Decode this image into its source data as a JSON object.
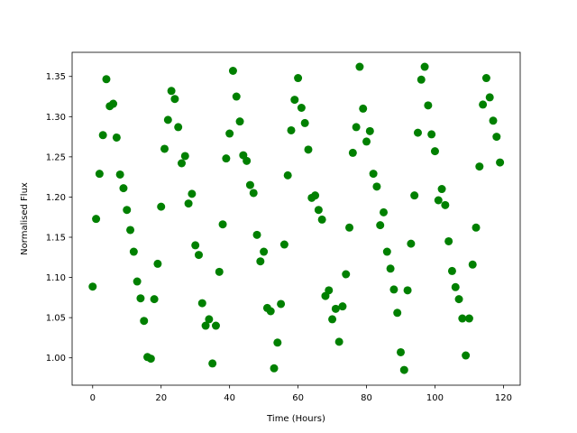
{
  "chart_data": {
    "type": "scatter",
    "xlabel": "Time (Hours)",
    "ylabel": "Normalised Flux",
    "color": "#008000",
    "x": [
      0,
      1,
      2,
      3,
      4,
      5,
      6,
      7,
      8,
      9,
      10,
      11,
      12,
      13,
      14,
      15,
      16,
      17,
      18,
      19,
      20,
      21,
      22,
      23,
      24,
      25,
      26,
      27,
      28,
      29,
      30,
      31,
      32,
      33,
      34,
      35,
      36,
      37,
      38,
      39,
      40,
      41,
      42,
      43,
      44,
      45,
      46,
      47,
      48,
      49,
      50,
      51,
      52,
      53,
      54,
      55,
      56,
      57,
      58,
      59,
      60,
      61,
      62,
      63,
      64,
      65,
      66,
      67,
      68,
      69,
      70,
      71,
      72,
      73,
      74,
      75,
      76,
      77,
      78,
      79,
      80,
      81,
      82,
      83,
      84,
      85,
      86,
      87,
      88,
      89,
      90,
      91,
      92,
      93,
      94,
      95,
      96,
      97,
      98,
      99,
      100,
      101,
      102,
      103,
      104,
      105,
      106,
      107,
      108,
      109,
      110,
      111,
      112,
      113,
      114,
      115,
      116,
      117,
      118,
      119
    ],
    "values": [
      1.0886,
      1.1728,
      1.2289,
      1.277,
      1.3466,
      1.313,
      1.316,
      1.274,
      1.228,
      1.211,
      1.184,
      1.159,
      1.132,
      1.095,
      1.074,
      1.046,
      1.001,
      0.999,
      1.073,
      1.117,
      1.188,
      1.26,
      1.296,
      1.332,
      1.322,
      1.287,
      1.242,
      1.251,
      1.192,
      1.204,
      1.14,
      1.128,
      1.068,
      1.04,
      1.048,
      0.993,
      1.04,
      1.107,
      1.166,
      1.248,
      1.279,
      1.357,
      1.325,
      1.294,
      1.252,
      1.245,
      1.215,
      1.205,
      1.153,
      1.12,
      1.132,
      1.062,
      1.058,
      0.987,
      1.019,
      1.067,
      1.141,
      1.227,
      1.283,
      1.321,
      1.348,
      1.311,
      1.292,
      1.259,
      1.199,
      1.202,
      1.184,
      1.172,
      1.077,
      1.084,
      1.048,
      1.061,
      1.02,
      1.064,
      1.104,
      1.162,
      1.255,
      1.287,
      1.362,
      1.31,
      1.269,
      1.282,
      1.229,
      1.213,
      1.165,
      1.181,
      1.132,
      1.111,
      1.085,
      1.056,
      1.007,
      0.985,
      1.084,
      1.142,
      1.202,
      1.28,
      1.346,
      1.362,
      1.314,
      1.278,
      1.257,
      1.196,
      1.21,
      1.19,
      1.145,
      1.108,
      1.088,
      1.073,
      1.049,
      1.003,
      1.049,
      1.116,
      1.162,
      1.238,
      1.315,
      1.348,
      1.324,
      1.295,
      1.275,
      1.243
    ],
    "xlim": [
      -6,
      124.9
    ],
    "ylim": [
      0.966,
      1.38
    ],
    "xticks": [
      0,
      20,
      40,
      60,
      80,
      100,
      120
    ],
    "yticks": [
      {
        "value": 1.0,
        "label": "1.00"
      },
      {
        "value": 1.05,
        "label": "1.05"
      },
      {
        "value": 1.1,
        "label": "1.10"
      },
      {
        "value": 1.15,
        "label": "1.15"
      },
      {
        "value": 1.2,
        "label": "1.20"
      },
      {
        "value": 1.25,
        "label": "1.25"
      },
      {
        "value": 1.3,
        "label": "1.30"
      },
      {
        "value": 1.35,
        "label": "1.35"
      }
    ]
  }
}
